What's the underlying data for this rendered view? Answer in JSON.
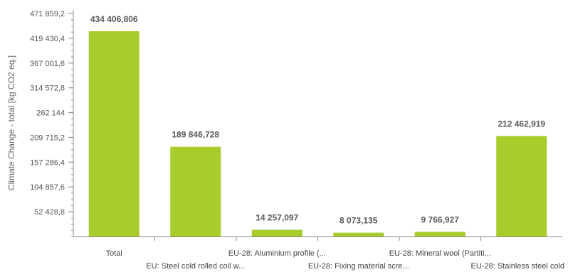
{
  "chart_data": {
    "type": "bar",
    "ylabel": "Climate Change - total [kg CO2 eq.]",
    "ylim": [
      0,
      471859.2
    ],
    "y_ticks": [
      52428.8,
      104857.6,
      157286.4,
      209715.2,
      262144,
      314572.8,
      367001.6,
      419430.4,
      471859.2
    ],
    "y_tick_labels": [
      "52 428,8",
      "104 857,6",
      "157 286,4",
      "209 715,2",
      "262 144",
      "314 572,8",
      "367 001,6",
      "419 430,4",
      "471 859,2"
    ],
    "categories": [
      "Total",
      "EU: Steel cold rolled coil w...",
      "EU-28: Aluminium profile (...",
      "EU-28: Fixing material scre...",
      "EU-28: Mineral wool (Partiti...",
      "EU-28: Stainless steel cold"
    ],
    "values": [
      434406.806,
      189846.728,
      14257.097,
      8073.135,
      9766.927,
      212462.919
    ],
    "value_labels": [
      "434 406,806",
      "189 846,728",
      "14 257,097",
      "8 073,135",
      "9 766,927",
      "212 462,919"
    ],
    "bar_color": "#a8cc2c",
    "grid": false
  }
}
